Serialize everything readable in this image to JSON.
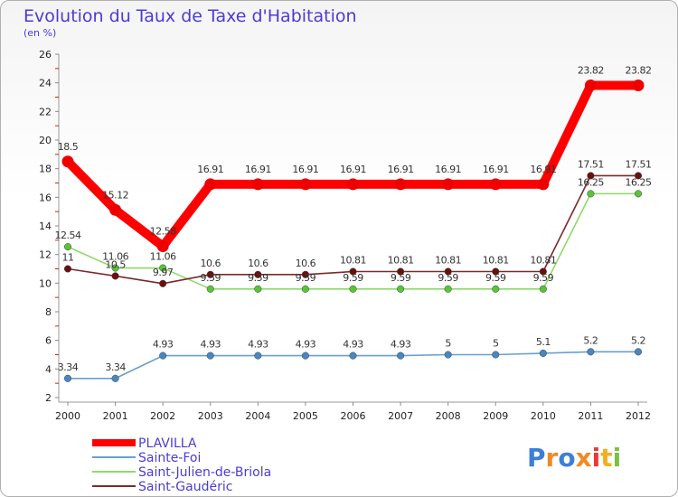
{
  "chart_data": {
    "type": "line",
    "title": "Evolution du Taux de Taxe d'Habitation",
    "subtitle": "(en %)",
    "xlabel": "",
    "ylabel": "",
    "categories": [
      "2000",
      "2001",
      "2002",
      "2003",
      "2004",
      "2005",
      "2006",
      "2007",
      "2008",
      "2009",
      "2010",
      "2011",
      "2012"
    ],
    "ylim": [
      2,
      26
    ],
    "yticks": [
      2,
      4,
      6,
      8,
      10,
      12,
      14,
      16,
      18,
      20,
      22,
      24,
      26
    ],
    "grid": false,
    "legend_position": "bottom-left",
    "series": [
      {
        "name": "Saint-Julien-de-Briola",
        "color": "#8fd96a",
        "dot": "#5cc23a",
        "values": [
          12.54,
          11.06,
          11.06,
          9.59,
          9.59,
          9.59,
          9.59,
          9.59,
          9.59,
          9.59,
          9.59,
          16.25,
          16.25
        ],
        "labels": [
          "12.54",
          "11.06",
          "11.06",
          "9.59",
          "9.59",
          "9.59",
          "9.59",
          "9.59",
          "9.59",
          "9.59",
          "9.59",
          "16.25",
          "16.25"
        ]
      },
      {
        "name": "Saint-Gaudéric",
        "color": "#7a2a2a",
        "dot": "#6a0f0f",
        "values": [
          11,
          10.5,
          9.97,
          10.6,
          10.6,
          10.6,
          10.81,
          10.81,
          10.81,
          10.81,
          10.81,
          17.51,
          17.51
        ],
        "labels": [
          "11",
          "10.5",
          "9.97",
          "10.6",
          "10.6",
          "10.6",
          "10.81",
          "10.81",
          "10.81",
          "10.81",
          "10.81",
          "17.51",
          "17.51"
        ]
      },
      {
        "name": "Sainte-Foi",
        "color": "#6a9fcf",
        "dot": "#4a86c0",
        "values": [
          3.34,
          3.34,
          4.93,
          4.93,
          4.93,
          4.93,
          4.93,
          4.93,
          5,
          5,
          5.1,
          5.2,
          5.2
        ],
        "labels": [
          "3.34",
          "3.34",
          "4.93",
          "4.93",
          "4.93",
          "4.93",
          "4.93",
          "4.93",
          "5",
          "5",
          "5.1",
          "5.2",
          "5.2"
        ]
      },
      {
        "name": "PLAVILLA",
        "color": "#ff0000",
        "dot": "#ee0000",
        "values": [
          18.5,
          15.12,
          12.58,
          16.91,
          16.91,
          16.91,
          16.91,
          16.91,
          16.91,
          16.91,
          16.91,
          23.82,
          23.82
        ],
        "labels": [
          "18.5",
          "15.12",
          "12.58",
          "16.91",
          "16.91",
          "16.91",
          "16.91",
          "16.91",
          "16.91",
          "16.91",
          "16.91",
          "23.82",
          "23.82"
        ]
      }
    ],
    "legend": [
      "PLAVILLA",
      "Sainte-Foi",
      "Saint-Julien-de-Briola",
      "Saint-Gaudéric"
    ]
  },
  "brand": {
    "logo_text": "Proxiti",
    "letters": [
      "P",
      "r",
      "o",
      "x",
      "i",
      "t",
      "i"
    ],
    "letter_colors": [
      "#3d7fd6",
      "#f08a24",
      "#3d7fd6",
      "#f08a24",
      "#e93a3a",
      "#f0b020",
      "#7ac043"
    ]
  }
}
